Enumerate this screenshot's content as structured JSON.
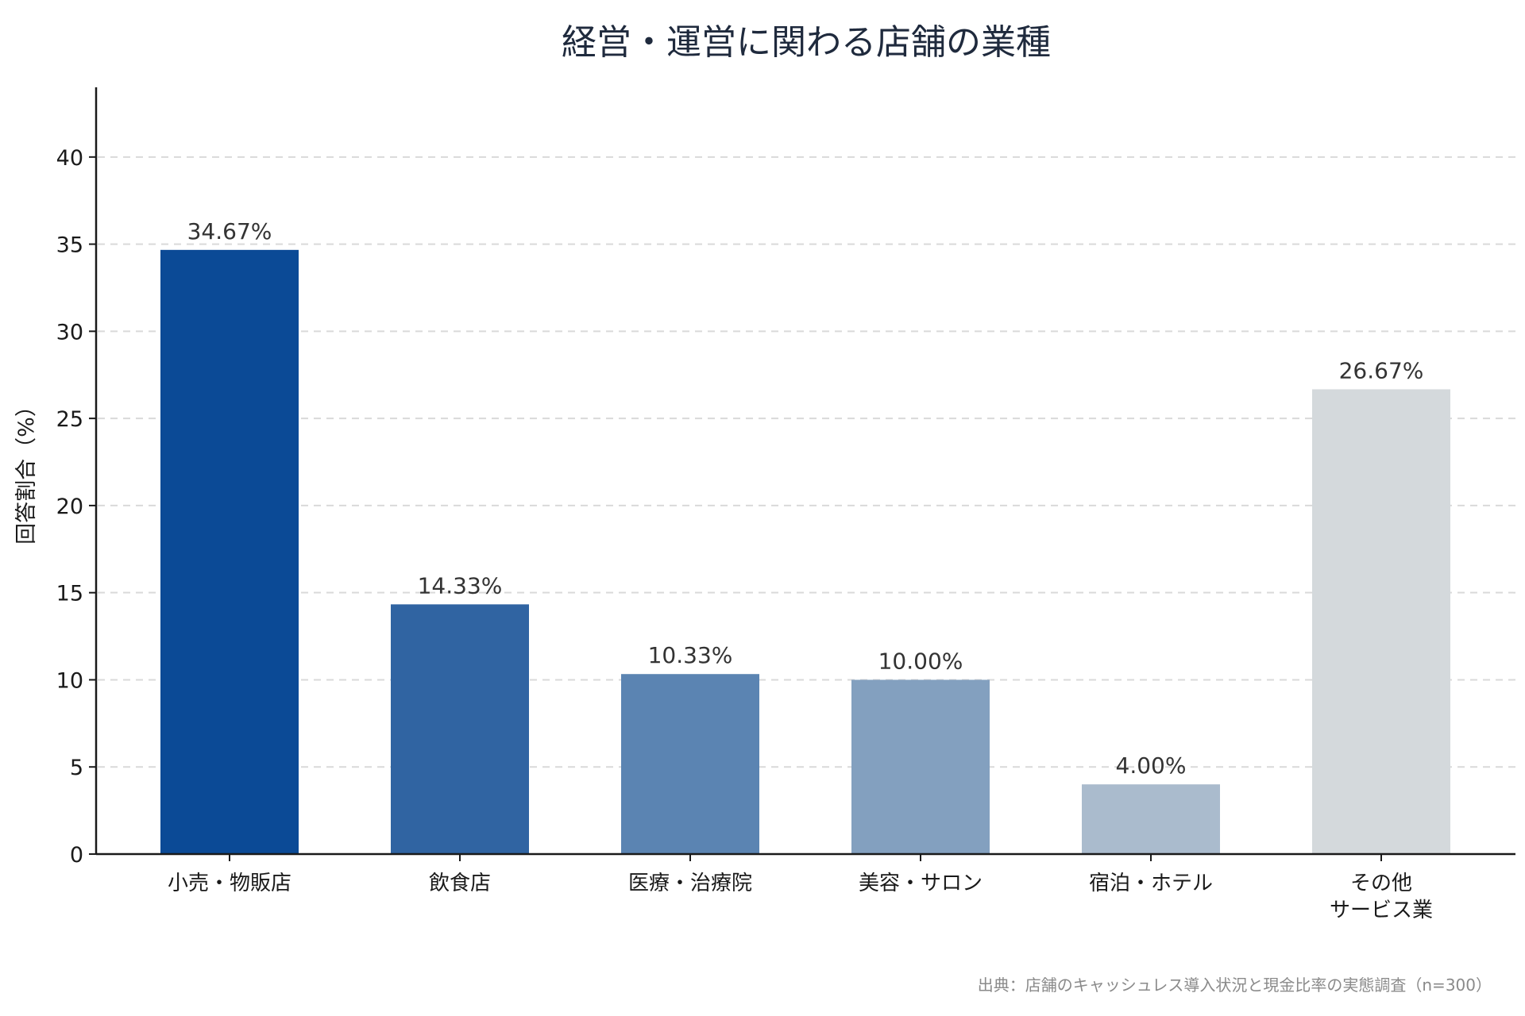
{
  "chart_data": {
    "type": "bar",
    "title": "経営・運営に関わる店舗の業種",
    "ylabel": "回答割合（%）",
    "xlabel": "",
    "ylim": [
      0,
      44
    ],
    "yticks": [
      0,
      5,
      10,
      15,
      20,
      25,
      30,
      35,
      40
    ],
    "grid": true,
    "categories": [
      [
        "小売・物販店"
      ],
      [
        "飲食店"
      ],
      [
        "医療・治療院"
      ],
      [
        "美容・サロン"
      ],
      [
        "宿泊・ホテル"
      ],
      [
        "その他",
        "サービス業"
      ]
    ],
    "values": [
      34.67,
      14.33,
      10.33,
      10.0,
      4.0,
      26.67
    ],
    "value_labels": [
      "34.67%",
      "14.33%",
      "10.33%",
      "10.00%",
      "4.00%",
      "26.67%"
    ],
    "colors": [
      "#0b4a96",
      "#3064a2",
      "#5b84b2",
      "#83a0bf",
      "#aabbcd",
      "#d4d9dc"
    ],
    "source": "出典：店舗のキャッシュレス導入状況と現金比率の実態調査（n=300）"
  }
}
